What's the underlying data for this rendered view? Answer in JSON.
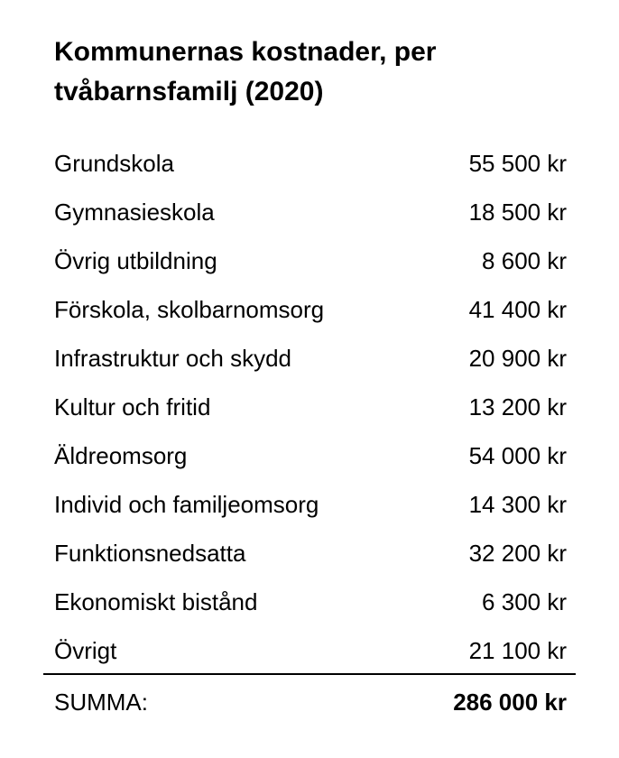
{
  "title": "Kommunernas kostnader, per tvåbarnsfamilj  (2020)",
  "rows": [
    {
      "label": "Grundskola",
      "value": "55 500 kr"
    },
    {
      "label": "Gymnasieskola",
      "value": "18 500 kr"
    },
    {
      "label": "Övrig utbildning",
      "value": "8 600 kr"
    },
    {
      "label": "Förskola, skolbarnomsorg",
      "value": "41 400 kr"
    },
    {
      "label": "Infrastruktur och skydd",
      "value": "20 900 kr"
    },
    {
      "label": "Kultur och fritid",
      "value": "13 200 kr"
    },
    {
      "label": "Äldreomsorg",
      "value": "54 000 kr"
    },
    {
      "label": "Individ och familjeomsorg",
      "value": "14 300 kr"
    },
    {
      "label": "Funktionsnedsatta",
      "value": "32 200 kr"
    },
    {
      "label": "Ekonomiskt bistånd",
      "value": "6 300 kr"
    },
    {
      "label": "Övrigt",
      "value": "21 100 kr"
    }
  ],
  "total": {
    "label": "SUMMA:",
    "value": "286 000 kr"
  }
}
